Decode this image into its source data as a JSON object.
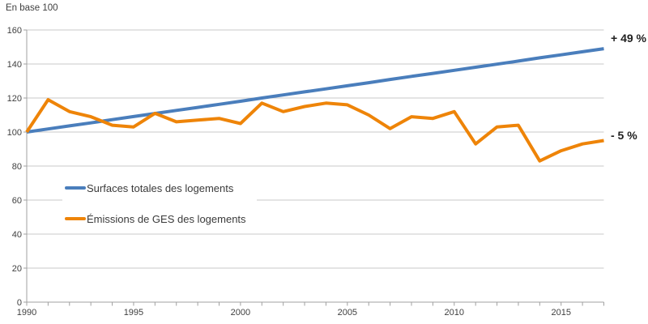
{
  "colors": {
    "surfaces": "#4a7ebc",
    "emissions": "#ee8408",
    "grid": "#c9c9c9",
    "axis": "#a0a0a0",
    "tick_text": "#404040"
  },
  "chart_data": {
    "type": "line",
    "unit": "En base 100",
    "x": [
      1990,
      1991,
      1992,
      1993,
      1994,
      1995,
      1996,
      1997,
      1998,
      1999,
      2000,
      2001,
      2002,
      2003,
      2004,
      2005,
      2006,
      2007,
      2008,
      2009,
      2010,
      2011,
      2012,
      2013,
      2014,
      2015,
      2016,
      2017
    ],
    "x_tick_years": [
      1990,
      1995,
      2000,
      2005,
      2010,
      2015
    ],
    "y_ticks": [
      0,
      20,
      40,
      60,
      80,
      100,
      120,
      140,
      160
    ],
    "ylim": [
      0,
      160
    ],
    "grid": "horizontal",
    "legend_position": "inside-left",
    "series": [
      {
        "name": "Surfaces totales des logements",
        "color": "#4a7ebc",
        "end_annotation": "+ 49 %",
        "values": [
          100,
          101.8,
          103.6,
          105.4,
          107.3,
          109.1,
          110.9,
          112.7,
          114.5,
          116.3,
          118.1,
          120,
          121.8,
          123.6,
          125.4,
          127.2,
          129,
          130.9,
          132.7,
          134.5,
          136.3,
          138.1,
          139.9,
          141.7,
          143.6,
          145.4,
          147.2,
          149
        ]
      },
      {
        "name": "Émissions de GES des logements",
        "color": "#ee8408",
        "end_annotation": "- 5 %",
        "values": [
          100,
          119,
          112,
          109,
          104,
          103,
          111,
          106,
          107,
          108,
          105,
          117,
          112,
          115,
          117,
          116,
          110,
          102,
          109,
          108,
          112,
          93,
          103,
          104,
          83,
          89,
          93,
          95
        ]
      }
    ]
  }
}
